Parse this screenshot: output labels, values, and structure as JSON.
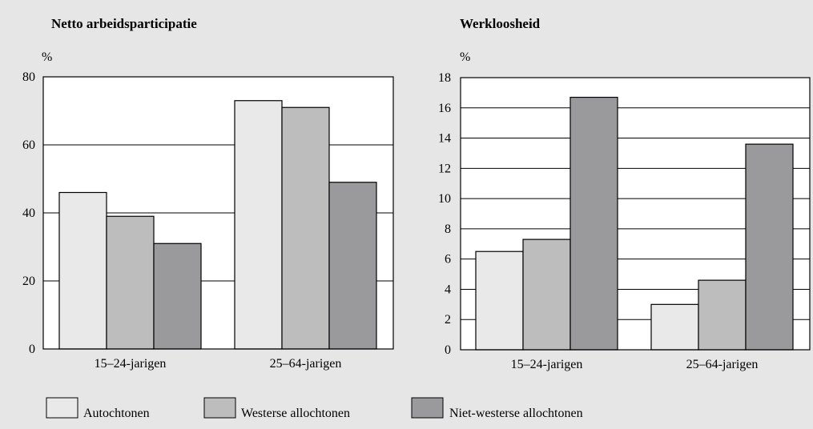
{
  "colors": {
    "background": "#e6e6e6",
    "plot_background": "#ffffff",
    "series": [
      "#e9e9e9",
      "#bdbdbe",
      "#9a9a9c"
    ]
  },
  "legend": {
    "items": [
      "Autochtonen",
      "Westerse allochtonen",
      "Niet-westerse allochtonen"
    ]
  },
  "chart_data": [
    {
      "type": "bar",
      "title": "Netto arbeidsparticipatie",
      "unit_label": "%",
      "categories": [
        "15–24-jarigen",
        "25–64-jarigen"
      ],
      "series": [
        {
          "name": "Autochtonen",
          "values": [
            46,
            73
          ]
        },
        {
          "name": "Westerse allochtonen",
          "values": [
            39,
            71
          ]
        },
        {
          "name": "Niet-westerse allochtonen",
          "values": [
            31,
            49
          ]
        }
      ],
      "ylim": [
        0,
        80
      ],
      "yticks": [
        0,
        20,
        40,
        60,
        80
      ],
      "grid": true,
      "legend_position": "bottom"
    },
    {
      "type": "bar",
      "title": "Werkloosheid",
      "unit_label": "%",
      "categories": [
        "15–24-jarigen",
        "25–64-jarigen"
      ],
      "series": [
        {
          "name": "Autochtonen",
          "values": [
            6.5,
            3.0
          ]
        },
        {
          "name": "Westerse allochtonen",
          "values": [
            7.3,
            4.6
          ]
        },
        {
          "name": "Niet-westerse allochtonen",
          "values": [
            16.7,
            13.6
          ]
        }
      ],
      "ylim": [
        0,
        18
      ],
      "yticks": [
        0,
        2,
        4,
        6,
        8,
        10,
        12,
        14,
        16,
        18
      ],
      "grid": true,
      "legend_position": "bottom"
    }
  ]
}
